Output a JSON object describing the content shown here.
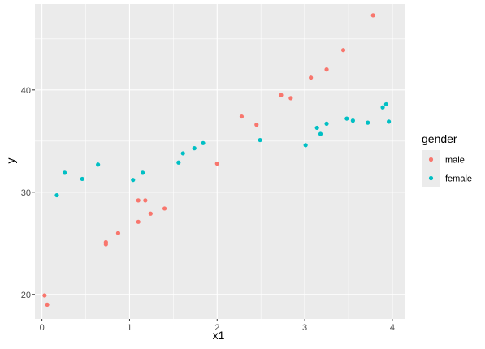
{
  "chart_data": {
    "type": "scatter",
    "xlabel": "x1",
    "ylabel": "y",
    "xlim": [
      -0.08,
      4.14
    ],
    "ylim": [
      17.6,
      48.4
    ],
    "x_ticks": [
      0,
      1,
      2,
      3,
      4
    ],
    "y_ticks": [
      20,
      30,
      40
    ],
    "x_tick_labels": [
      "0",
      "1",
      "2",
      "3",
      "4"
    ],
    "y_tick_labels": [
      "20",
      "30",
      "40"
    ],
    "grid": true,
    "legend": {
      "title": "gender",
      "position": "right"
    },
    "series": [
      {
        "name": "male",
        "color": "#F8766D",
        "points": [
          [
            0.03,
            19.9
          ],
          [
            0.06,
            19.0
          ],
          [
            0.73,
            25.1
          ],
          [
            0.73,
            24.9
          ],
          [
            0.87,
            26.0
          ],
          [
            1.1,
            29.2
          ],
          [
            1.1,
            27.1
          ],
          [
            1.18,
            29.2
          ],
          [
            1.24,
            27.9
          ],
          [
            1.4,
            28.4
          ],
          [
            2.0,
            32.8
          ],
          [
            2.28,
            37.4
          ],
          [
            2.45,
            36.6
          ],
          [
            2.73,
            39.5
          ],
          [
            2.84,
            39.2
          ],
          [
            3.07,
            41.2
          ],
          [
            3.25,
            42.0
          ],
          [
            3.44,
            43.9
          ],
          [
            3.78,
            47.3
          ]
        ]
      },
      {
        "name": "female",
        "color": "#00BFC4",
        "points": [
          [
            0.17,
            29.7
          ],
          [
            0.26,
            31.9
          ],
          [
            0.46,
            31.3
          ],
          [
            0.64,
            32.7
          ],
          [
            1.04,
            31.2
          ],
          [
            1.15,
            31.9
          ],
          [
            1.56,
            32.9
          ],
          [
            1.61,
            33.8
          ],
          [
            1.74,
            34.3
          ],
          [
            1.84,
            34.8
          ],
          [
            2.49,
            35.1
          ],
          [
            3.01,
            34.6
          ],
          [
            3.14,
            36.3
          ],
          [
            3.18,
            35.7
          ],
          [
            3.25,
            36.7
          ],
          [
            3.48,
            37.2
          ],
          [
            3.55,
            37.0
          ],
          [
            3.72,
            36.8
          ],
          [
            3.89,
            38.3
          ],
          [
            3.93,
            38.6
          ],
          [
            3.96,
            36.9
          ]
        ]
      }
    ]
  }
}
